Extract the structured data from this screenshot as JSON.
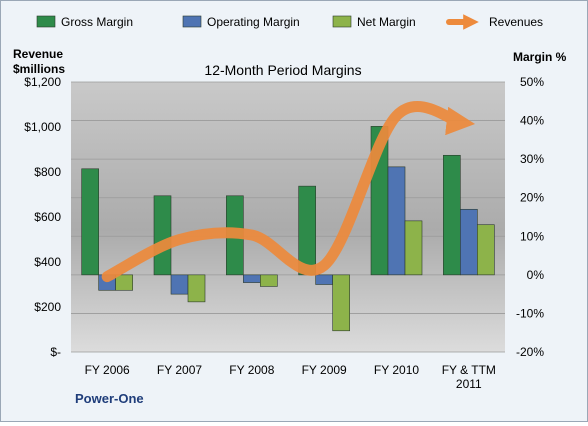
{
  "chart_data": {
    "type": "bar",
    "title": "12-Month Period Margins",
    "left_axis_label": [
      "Revenue",
      "$millions"
    ],
    "right_axis_label": "Margin %",
    "categories": [
      [
        "FY 2006"
      ],
      [
        "FY 2007"
      ],
      [
        "FY 2008"
      ],
      [
        "FY 2009"
      ],
      [
        "FY 2010"
      ],
      [
        "FY & TTM",
        "2011"
      ]
    ],
    "company_label": "Power-One",
    "left_axis": {
      "ticks": [
        "$-",
        "$200",
        "$400",
        "$600",
        "$800",
        "$1,000",
        "$1,200"
      ],
      "range": [
        0,
        1200
      ]
    },
    "right_axis": {
      "ticks": [
        "-20%",
        "-10%",
        "0%",
        "10%",
        "20%",
        "30%",
        "40%",
        "50%"
      ],
      "range": [
        -20,
        50
      ]
    },
    "grid": true,
    "legend_position": "top",
    "series": [
      {
        "name": "Gross Margin",
        "kind": "bar",
        "axis": "right",
        "color": "#2e8b4a",
        "values": [
          27.5,
          20.5,
          20.5,
          23,
          38.5,
          31
        ]
      },
      {
        "name": "Operating Margin",
        "kind": "bar",
        "axis": "right",
        "color": "#4f74b3",
        "values": [
          -4,
          -5,
          -2,
          -2.5,
          28,
          17
        ]
      },
      {
        "name": "Net Margin",
        "kind": "bar",
        "axis": "right",
        "color": "#8db34a",
        "values": [
          -4,
          -7,
          -3,
          -14.5,
          14,
          13
        ]
      },
      {
        "name": "Revenues",
        "kind": "line",
        "axis": "left",
        "color": "#ed8a3c",
        "values": [
          335,
          500,
          520,
          385,
          1050,
          1020
        ]
      }
    ]
  }
}
